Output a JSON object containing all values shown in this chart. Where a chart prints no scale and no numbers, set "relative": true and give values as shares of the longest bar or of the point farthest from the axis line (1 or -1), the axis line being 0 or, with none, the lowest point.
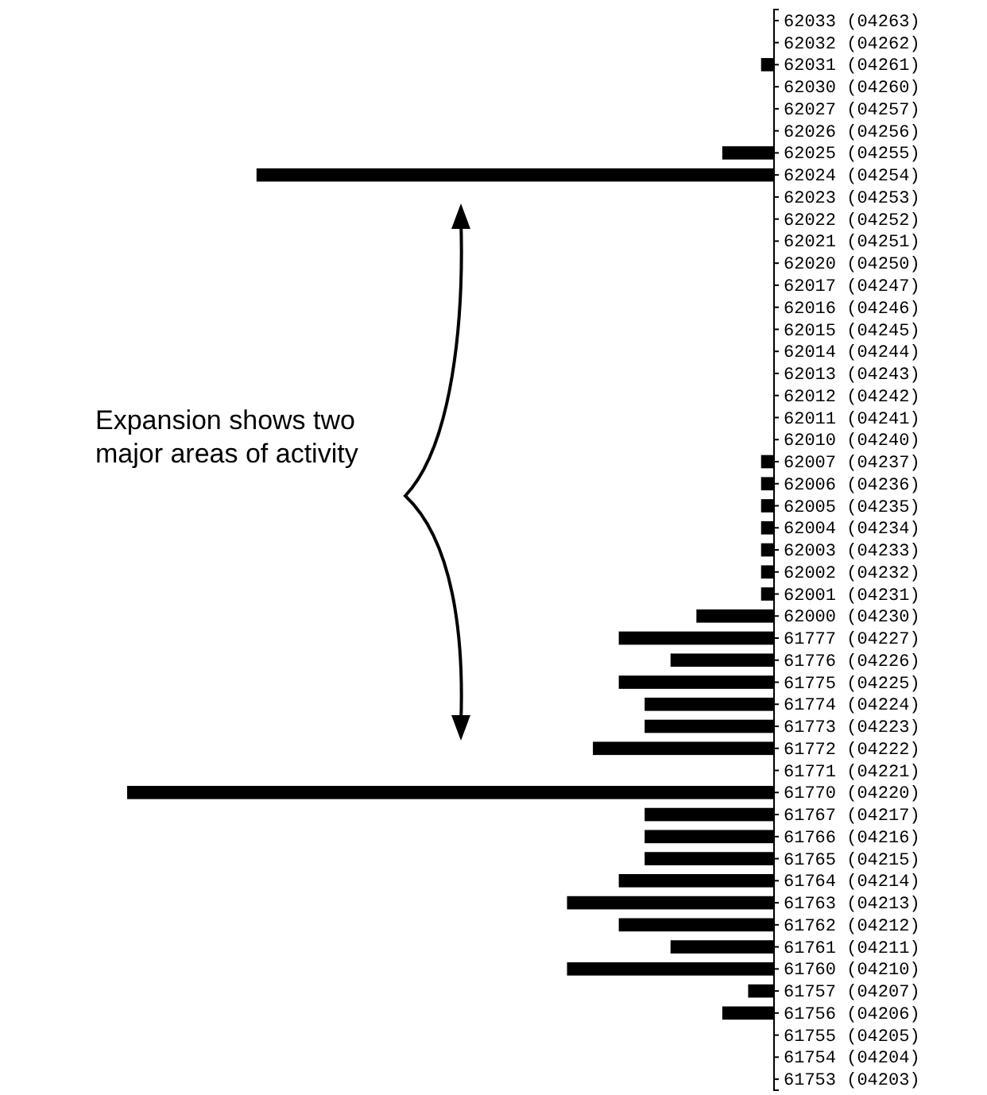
{
  "chart_data": {
    "type": "bar",
    "orientation": "horizontal",
    "relative": true,
    "color": "#000000",
    "categories": [
      "62033 (04263)",
      "62032 (04262)",
      "62031 (04261)",
      "62030 (04260)",
      "62027 (04257)",
      "62026 (04256)",
      "62025 (04255)",
      "62024 (04254)",
      "62023 (04253)",
      "62022 (04252)",
      "62021 (04251)",
      "62020 (04250)",
      "62017 (04247)",
      "62016 (04246)",
      "62015 (04245)",
      "62014 (04244)",
      "62013 (04243)",
      "62012 (04242)",
      "62011 (04241)",
      "62010 (04240)",
      "62007 (04237)",
      "62006 (04236)",
      "62005 (04235)",
      "62004 (04234)",
      "62003 (04233)",
      "62002 (04232)",
      "62001 (04231)",
      "62000 (04230)",
      "61777 (04227)",
      "61776 (04226)",
      "61775 (04225)",
      "61774 (04224)",
      "61773 (04223)",
      "61772 (04222)",
      "61771 (04221)",
      "61770 (04220)",
      "61767 (04217)",
      "61766 (04216)",
      "61765 (04215)",
      "61764 (04214)",
      "61763 (04213)",
      "61762 (04212)",
      "61761 (04211)",
      "61760 (04210)",
      "61757 (04207)",
      "61756 (04206)",
      "61755 (04205)",
      "61754 (04204)",
      "61753 (04203)"
    ],
    "values": [
      0,
      0,
      0.02,
      0,
      0,
      0,
      0.08,
      0.8,
      0,
      0,
      0,
      0,
      0,
      0,
      0,
      0,
      0,
      0,
      0,
      0,
      0.02,
      0.02,
      0.02,
      0.02,
      0.02,
      0.02,
      0.02,
      0.12,
      0.24,
      0.16,
      0.24,
      0.2,
      0.2,
      0.28,
      0,
      1,
      0.2,
      0.2,
      0.2,
      0.24,
      0.32,
      0.24,
      0.16,
      0.32,
      0.04,
      0.08,
      0,
      0,
      0
    ],
    "annotations": [
      "Expansion shows two major areas of activity"
    ]
  }
}
